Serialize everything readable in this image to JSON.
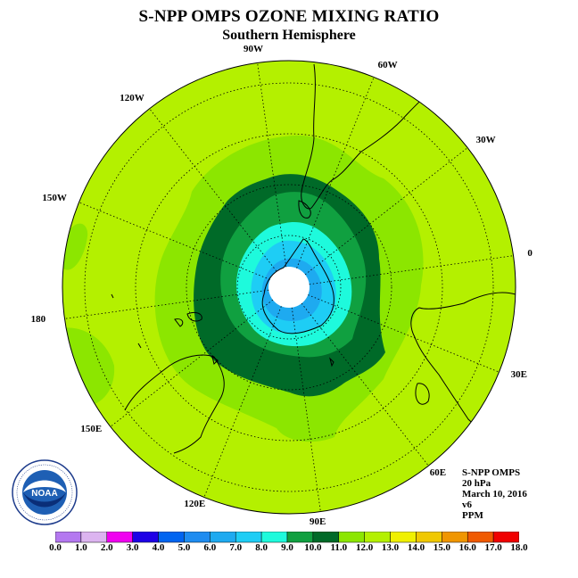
{
  "title": "S-NPP OMPS OZONE MIXING RATIO",
  "subtitle": "Southern Hemisphere",
  "longitudes": [
    "90W",
    "60W",
    "30W",
    "0",
    "30E",
    "60E",
    "90E",
    "120E",
    "150E",
    "180",
    "150W",
    "120W"
  ],
  "info": {
    "instrument": "S-NPP OMPS",
    "level": "20 hPa",
    "date": "March 10, 2016",
    "version": "v6",
    "units": "PPM"
  },
  "logo": {
    "name": "noaa-logo",
    "text": "NOAA",
    "ring_text": "NATIONAL OCEANIC AND ATMOSPHERIC ADMINISTRATION · U.S. DEPARTMENT OF COMMERCE"
  },
  "colorbar": {
    "ticks": [
      "0.0",
      "1.0",
      "2.0",
      "3.0",
      "4.0",
      "5.0",
      "6.0",
      "7.0",
      "8.0",
      "9.0",
      "10.0",
      "11.0",
      "12.0",
      "13.0",
      "14.0",
      "15.0",
      "16.0",
      "17.0",
      "18.0"
    ],
    "colors": [
      "#b478f0",
      "#dcb4f0",
      "#f000f0",
      "#1e00e6",
      "#0064f0",
      "#1e8cf0",
      "#1eaaf0",
      "#1ecdf5",
      "#1efadc",
      "#10a040",
      "#006a28",
      "#8ce600",
      "#b4f000",
      "#f0f000",
      "#f0c800",
      "#f09600",
      "#f05a00",
      "#f00000",
      "#8c5a3c"
    ]
  }
}
